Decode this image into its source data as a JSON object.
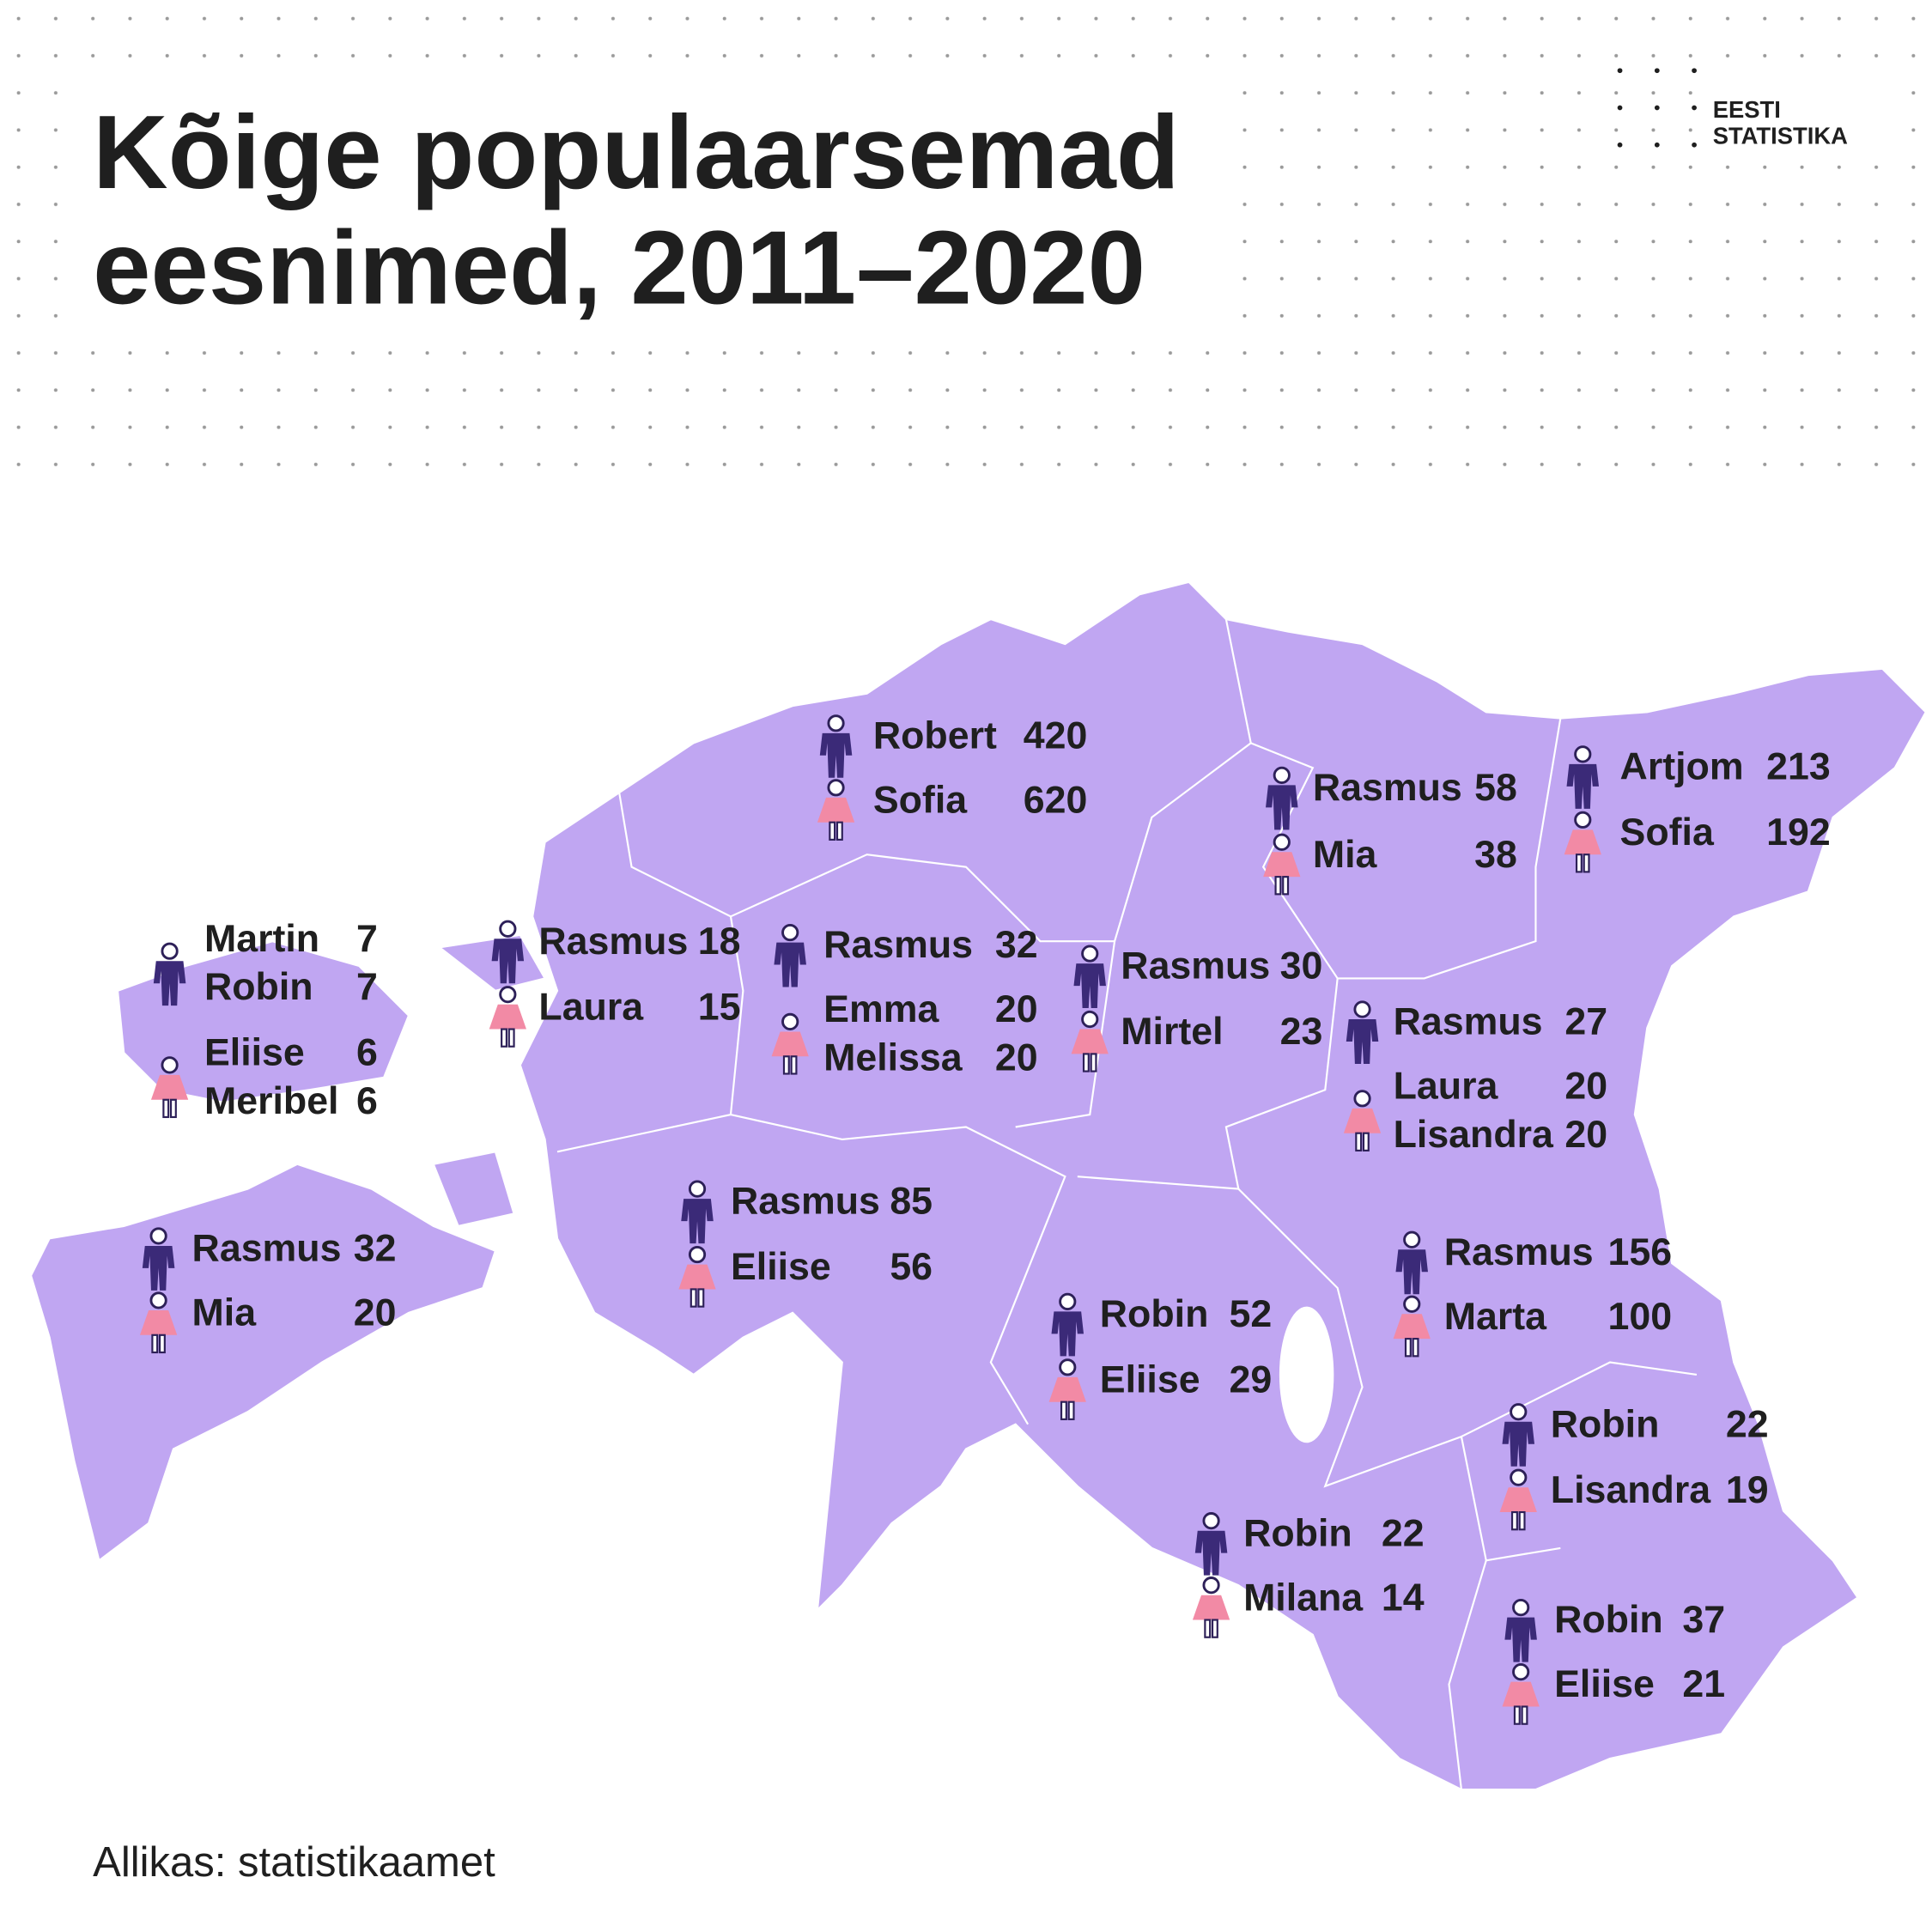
{
  "header": {
    "title_lines": [
      "Kõige populaarsemad",
      "eesnimed, 2011–2020"
    ],
    "logo": [
      "EESTI",
      "STATISTIKA"
    ]
  },
  "regions": [
    {
      "boys": [
        {
          "name": "Robert",
          "count": 420
        }
      ],
      "girls": [
        {
          "name": "Sofia",
          "count": 620
        }
      ]
    },
    {
      "boys": [
        {
          "name": "Rasmus",
          "count": 58
        }
      ],
      "girls": [
        {
          "name": "Mia",
          "count": 38
        }
      ]
    },
    {
      "boys": [
        {
          "name": "Artjom",
          "count": 213
        }
      ],
      "girls": [
        {
          "name": "Sofia",
          "count": 192
        }
      ]
    },
    {
      "boys": [
        {
          "name": "Martin",
          "count": 7
        },
        {
          "name": "Robin",
          "count": 7
        }
      ],
      "girls": [
        {
          "name": "Eliise",
          "count": 6
        },
        {
          "name": "Meribel",
          "count": 6
        }
      ]
    },
    {
      "boys": [
        {
          "name": "Rasmus",
          "count": 18
        }
      ],
      "girls": [
        {
          "name": "Laura",
          "count": 15
        }
      ]
    },
    {
      "boys": [
        {
          "name": "Rasmus",
          "count": 32
        }
      ],
      "girls": [
        {
          "name": "Emma",
          "count": 20
        },
        {
          "name": "Melissa",
          "count": 20
        }
      ]
    },
    {
      "boys": [
        {
          "name": "Rasmus",
          "count": 30
        }
      ],
      "girls": [
        {
          "name": "Mirtel",
          "count": 23
        }
      ]
    },
    {
      "boys": [
        {
          "name": "Rasmus",
          "count": 27
        }
      ],
      "girls": [
        {
          "name": "Laura",
          "count": 20
        },
        {
          "name": "Lisandra",
          "count": 20
        }
      ]
    },
    {
      "boys": [
        {
          "name": "Rasmus",
          "count": 32
        }
      ],
      "girls": [
        {
          "name": "Mia",
          "count": 20
        }
      ]
    },
    {
      "boys": [
        {
          "name": "Rasmus",
          "count": 85
        }
      ],
      "girls": [
        {
          "name": "Eliise",
          "count": 56
        }
      ]
    },
    {
      "boys": [
        {
          "name": "Robin",
          "count": 52
        }
      ],
      "girls": [
        {
          "name": "Eliise",
          "count": 29
        }
      ]
    },
    {
      "boys": [
        {
          "name": "Rasmus",
          "count": 156
        }
      ],
      "girls": [
        {
          "name": "Marta",
          "count": 100
        }
      ]
    },
    {
      "boys": [
        {
          "name": "Robin",
          "count": 22
        }
      ],
      "girls": [
        {
          "name": "Lisandra",
          "count": 19
        }
      ]
    },
    {
      "boys": [
        {
          "name": "Robin",
          "count": 22
        }
      ],
      "girls": [
        {
          "name": "Milana",
          "count": 14
        }
      ]
    },
    {
      "boys": [
        {
          "name": "Robin",
          "count": 37
        }
      ],
      "girls": [
        {
          "name": "Eliise",
          "count": 21
        }
      ]
    }
  ],
  "source": "Allikas: statistikaamet"
}
